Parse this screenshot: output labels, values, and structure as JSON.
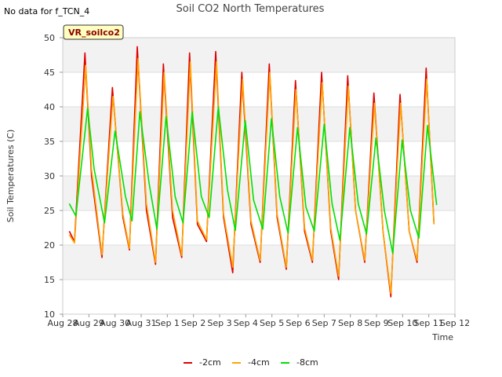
{
  "no_data_note": "No data for f_TCN_4",
  "chart_data": {
    "type": "line",
    "title": "Soil CO2 North Temperatures",
    "badge": "VR_soilco2",
    "xlabel": "Time",
    "ylabel": "Soil Temperatures (C)",
    "ylim": [
      10,
      50
    ],
    "yticks": [
      10,
      15,
      20,
      25,
      30,
      35,
      40,
      45,
      50
    ],
    "xlim": [
      0,
      15
    ],
    "xticks": [
      {
        "x": 0,
        "label": "Aug 28"
      },
      {
        "x": 1,
        "label": "Aug 29"
      },
      {
        "x": 2,
        "label": "Aug 30"
      },
      {
        "x": 3,
        "label": "Aug 31"
      },
      {
        "x": 4,
        "label": "Sep 1"
      },
      {
        "x": 5,
        "label": "Sep 2"
      },
      {
        "x": 6,
        "label": "Sep 3"
      },
      {
        "x": 7,
        "label": "Sep 4"
      },
      {
        "x": 8,
        "label": "Sep 5"
      },
      {
        "x": 9,
        "label": "Sep 6"
      },
      {
        "x": 10,
        "label": "Sep 7"
      },
      {
        "x": 11,
        "label": "Sep 8"
      },
      {
        "x": 12,
        "label": "Sep 9"
      },
      {
        "x": 13,
        "label": "Sep 10"
      },
      {
        "x": 14,
        "label": "Sep 11"
      },
      {
        "x": 15,
        "label": "Sep 12"
      }
    ],
    "grid": true,
    "legend_position": "bottom",
    "series": [
      {
        "name": "-2cm",
        "color": "#e00000",
        "points": [
          [
            0.25,
            22
          ],
          [
            0.45,
            20.5
          ],
          [
            0.85,
            47.8
          ],
          [
            1.1,
            30
          ],
          [
            1.5,
            18.2
          ],
          [
            1.9,
            42.8
          ],
          [
            2.3,
            24
          ],
          [
            2.55,
            19.3
          ],
          [
            2.85,
            48.7
          ],
          [
            3.2,
            25
          ],
          [
            3.55,
            17.2
          ],
          [
            3.85,
            46.2
          ],
          [
            4.2,
            24
          ],
          [
            4.55,
            18.2
          ],
          [
            4.85,
            47.8
          ],
          [
            5.15,
            23
          ],
          [
            5.5,
            20.5
          ],
          [
            5.85,
            48
          ],
          [
            6.15,
            24
          ],
          [
            6.5,
            16
          ],
          [
            6.85,
            45
          ],
          [
            7.2,
            23
          ],
          [
            7.55,
            17.5
          ],
          [
            7.9,
            46.2
          ],
          [
            8.2,
            24
          ],
          [
            8.55,
            16.5
          ],
          [
            8.9,
            43.8
          ],
          [
            9.25,
            22
          ],
          [
            9.55,
            17.5
          ],
          [
            9.9,
            45
          ],
          [
            10.25,
            22
          ],
          [
            10.55,
            15
          ],
          [
            10.9,
            44.5
          ],
          [
            11.2,
            25
          ],
          [
            11.55,
            17.5
          ],
          [
            11.9,
            42
          ],
          [
            12.25,
            22
          ],
          [
            12.55,
            12.5
          ],
          [
            12.9,
            41.8
          ],
          [
            13.25,
            22
          ],
          [
            13.55,
            17.5
          ],
          [
            13.9,
            45.6
          ],
          [
            14.2,
            23
          ]
        ]
      },
      {
        "name": "-4cm",
        "color": "#ffa500",
        "points": [
          [
            0.25,
            21.5
          ],
          [
            0.45,
            20.3
          ],
          [
            0.88,
            46
          ],
          [
            1.1,
            31
          ],
          [
            1.5,
            18.6
          ],
          [
            1.92,
            41.5
          ],
          [
            2.3,
            24.5
          ],
          [
            2.55,
            19.5
          ],
          [
            2.88,
            47
          ],
          [
            3.2,
            26
          ],
          [
            3.55,
            17.5
          ],
          [
            3.88,
            45
          ],
          [
            4.2,
            25
          ],
          [
            4.55,
            18.5
          ],
          [
            4.88,
            46.5
          ],
          [
            5.15,
            23.5
          ],
          [
            5.5,
            20.8
          ],
          [
            5.88,
            46.5
          ],
          [
            6.15,
            24.5
          ],
          [
            6.5,
            16.8
          ],
          [
            6.88,
            44
          ],
          [
            7.2,
            23.5
          ],
          [
            7.55,
            17.8
          ],
          [
            7.92,
            45
          ],
          [
            8.2,
            24.5
          ],
          [
            8.55,
            16.8
          ],
          [
            8.92,
            42.5
          ],
          [
            9.25,
            22.5
          ],
          [
            9.55,
            17.8
          ],
          [
            9.92,
            43.5
          ],
          [
            10.25,
            22.5
          ],
          [
            10.55,
            15.5
          ],
          [
            10.92,
            43
          ],
          [
            11.2,
            25
          ],
          [
            11.55,
            17.8
          ],
          [
            11.92,
            40.5
          ],
          [
            12.25,
            22
          ],
          [
            12.55,
            13
          ],
          [
            12.92,
            40.5
          ],
          [
            13.25,
            22
          ],
          [
            13.55,
            17.8
          ],
          [
            13.92,
            44
          ],
          [
            14.2,
            23
          ]
        ]
      },
      {
        "name": "-8cm",
        "color": "#00e000",
        "points": [
          [
            0.25,
            26
          ],
          [
            0.5,
            24.2
          ],
          [
            0.95,
            39.8
          ],
          [
            1.2,
            31
          ],
          [
            1.6,
            23.2
          ],
          [
            2,
            36.5
          ],
          [
            2.4,
            27
          ],
          [
            2.65,
            23.5
          ],
          [
            2.95,
            39.3
          ],
          [
            3.3,
            29
          ],
          [
            3.6,
            22.3
          ],
          [
            3.95,
            38.6
          ],
          [
            4.3,
            27
          ],
          [
            4.6,
            23.2
          ],
          [
            4.95,
            39.3
          ],
          [
            5.3,
            27
          ],
          [
            5.6,
            24
          ],
          [
            5.95,
            40
          ],
          [
            6.3,
            28
          ],
          [
            6.6,
            22.1
          ],
          [
            6.98,
            38
          ],
          [
            7.3,
            26.5
          ],
          [
            7.65,
            22.3
          ],
          [
            7.98,
            38.3
          ],
          [
            8.3,
            27
          ],
          [
            8.62,
            21.7
          ],
          [
            8.98,
            37
          ],
          [
            9.3,
            25.5
          ],
          [
            9.62,
            22
          ],
          [
            10.0,
            37.5
          ],
          [
            10.3,
            26
          ],
          [
            10.6,
            20.7
          ],
          [
            10.98,
            37
          ],
          [
            11.3,
            26
          ],
          [
            11.62,
            21.6
          ],
          [
            11.98,
            35.5
          ],
          [
            12.3,
            25
          ],
          [
            12.62,
            18.8
          ],
          [
            12.98,
            35.2
          ],
          [
            13.3,
            25
          ],
          [
            13.62,
            21
          ],
          [
            13.95,
            37.3
          ],
          [
            14.3,
            25.8
          ]
        ]
      }
    ]
  }
}
